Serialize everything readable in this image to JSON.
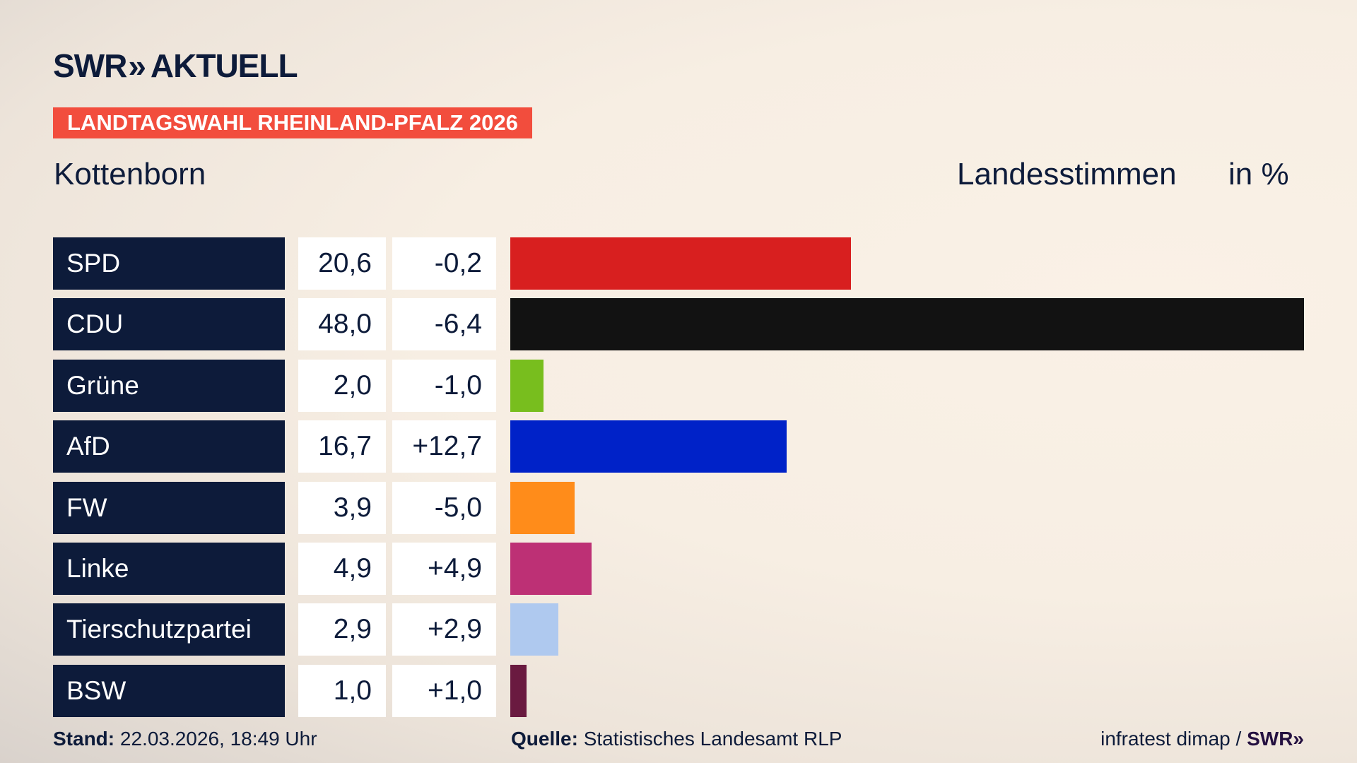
{
  "logo": {
    "swr": "SWR",
    "chevrons": "»",
    "aktuell": "AKTUELL"
  },
  "banner": "LANDTAGSWAHL RHEINLAND-PFALZ 2026",
  "place": "Kottenborn",
  "vote_type": "Landesstimmen",
  "unit": "in %",
  "chart_data": {
    "type": "bar",
    "orientation": "horizontal",
    "categories": [
      "SPD",
      "CDU",
      "Grüne",
      "AfD",
      "FW",
      "Linke",
      "Tierschutzpartei",
      "BSW"
    ],
    "values": [
      20.6,
      48.0,
      2.0,
      16.7,
      3.9,
      4.9,
      2.9,
      1.0
    ],
    "values_label": [
      "20,6",
      "48,0",
      "2,0",
      "16,7",
      "3,9",
      "4,9",
      "2,9",
      "1,0"
    ],
    "changes": [
      "-0,2",
      "-6,4",
      "-1,0",
      "+12,7",
      "-5,0",
      "+4,9",
      "+2,9",
      "+1,0"
    ],
    "colors": [
      "#d81f1f",
      "#121212",
      "#78be1e",
      "#0022c8",
      "#ff8c1a",
      "#bd3075",
      "#afc9ef",
      "#6a1a40"
    ],
    "xlim": [
      0,
      48
    ]
  },
  "footer": {
    "stand_label": "Stand:",
    "stand_value": "22.03.2026, 18:49 Uhr",
    "source_label": "Quelle:",
    "source_value": "Statistisches Landesamt RLP",
    "credit": "infratest dimap /",
    "credit_logo": "SWR»"
  }
}
